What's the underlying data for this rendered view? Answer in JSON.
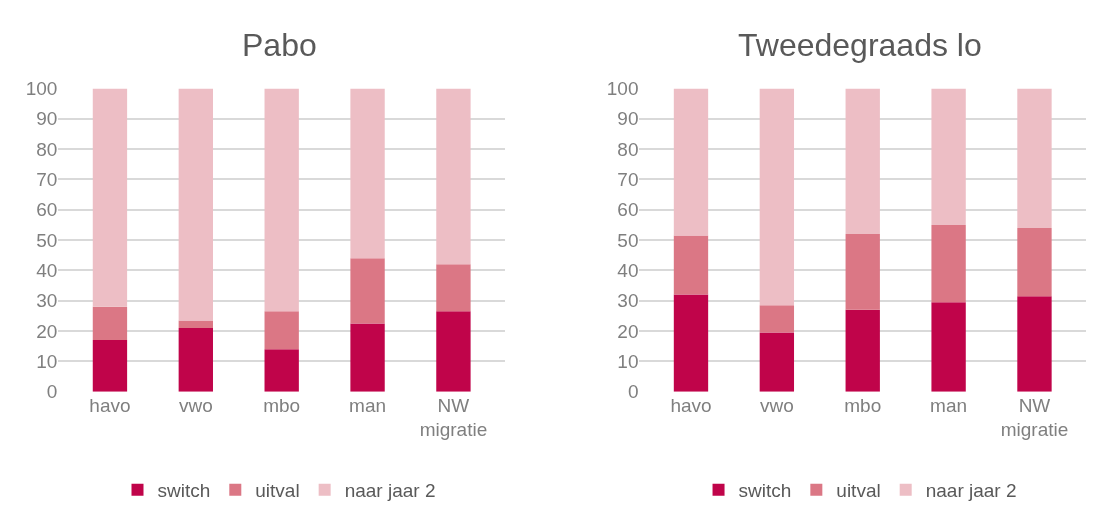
{
  "chart_data": [
    {
      "type": "bar",
      "title": "Pabo",
      "stacked": true,
      "categories": [
        "havo",
        "vwo",
        "mbo",
        "man",
        "NW migratie"
      ],
      "ylim": [
        0,
        100
      ],
      "yticks": [
        0,
        10,
        20,
        30,
        40,
        50,
        60,
        70,
        80,
        90,
        100
      ],
      "grid": "y",
      "legend": "bottom",
      "series": [
        {
          "name": "switch",
          "color": "#c0044a",
          "values": [
            17,
            21,
            14,
            22.5,
            26.5
          ]
        },
        {
          "name": "uitval",
          "color": "#db7785",
          "values": [
            11,
            2.5,
            12.5,
            21.5,
            15.5
          ]
        },
        {
          "name": "naar jaar 2",
          "color": "#edbec5",
          "values": [
            72,
            76.5,
            73.5,
            56,
            58
          ]
        }
      ]
    },
    {
      "type": "bar",
      "title": "Tweedegraads lo",
      "stacked": true,
      "categories": [
        "havo",
        "vwo",
        "mbo",
        "man",
        "NW migratie"
      ],
      "ylim": [
        0,
        100
      ],
      "yticks": [
        0,
        10,
        20,
        30,
        40,
        50,
        60,
        70,
        80,
        90,
        100
      ],
      "grid": "y",
      "legend": "bottom",
      "series": [
        {
          "name": "switch",
          "color": "#c0044a",
          "values": [
            32,
            19.5,
            27,
            29.5,
            31.5
          ]
        },
        {
          "name": "uitval",
          "color": "#db7785",
          "values": [
            19.5,
            9,
            25,
            25.5,
            22.5
          ]
        },
        {
          "name": "naar jaar 2",
          "color": "#edbec5",
          "values": [
            48.5,
            71.5,
            48,
            45,
            46
          ]
        }
      ]
    }
  ]
}
